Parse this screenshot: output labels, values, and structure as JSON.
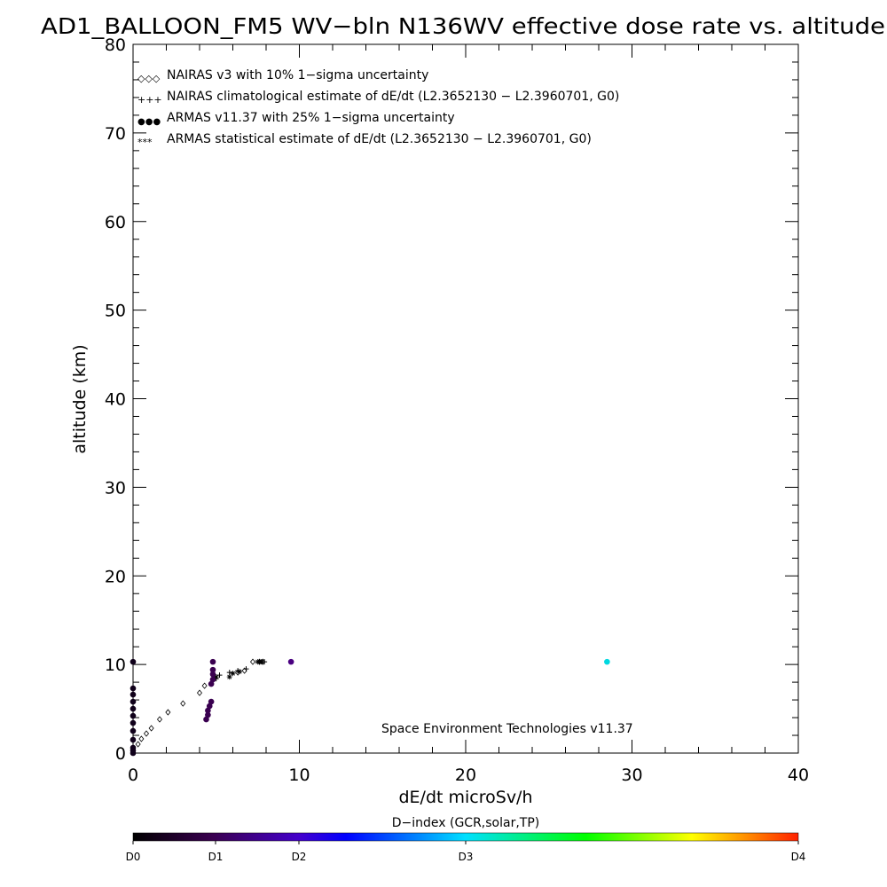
{
  "chart_data": {
    "type": "scatter",
    "title": "AD1_BALLOON_FM5 WV−bln N136WV effective dose rate vs. altitude",
    "xlabel": "dE/dt microSv/h",
    "ylabel": "altitude (km)",
    "xlim": [
      0,
      40
    ],
    "ylim": [
      0,
      80
    ],
    "xticks": [
      "0",
      "10",
      "20",
      "30",
      "40"
    ],
    "yticks": [
      "0",
      "10",
      "20",
      "30",
      "40",
      "50",
      "60",
      "70",
      "80"
    ],
    "grid": false,
    "legend_position": "top-left",
    "legend": [
      {
        "marker": "◇◇◇",
        "label": "NAIRAS v3 with 10% 1−sigma uncertainty"
      },
      {
        "marker": "+++",
        "label": "NAIRAS climatological estimate of dE/dt (L2.3652130 − L2.3960701, G0)"
      },
      {
        "marker": "●●●",
        "label": "ARMAS v11.37 with 25% 1−sigma uncertainty"
      },
      {
        "marker": "***",
        "label": "ARMAS statistical estimate of dE/dt (L2.3652130 − L2.3960701, G0)"
      }
    ],
    "annotation": "Space Environment Technologies v11.37",
    "colorbar": {
      "title": "D−index (GCR,solar,TP)",
      "labels": [
        "D0",
        "D1",
        "D2",
        "D3",
        "D4"
      ]
    },
    "series": [
      {
        "marker": "diamond",
        "points": [
          [
            0.3,
            1.0
          ],
          [
            0.5,
            1.6
          ],
          [
            0.8,
            2.2
          ],
          [
            1.1,
            2.8
          ],
          [
            1.6,
            3.8
          ],
          [
            2.1,
            4.6
          ],
          [
            3.0,
            5.6
          ],
          [
            4.0,
            6.8
          ],
          [
            4.3,
            7.6
          ],
          [
            6.3,
            9.1
          ],
          [
            6.7,
            9.3
          ],
          [
            7.2,
            10.3
          ],
          [
            7.6,
            10.3
          ],
          [
            7.8,
            10.3
          ]
        ]
      },
      {
        "marker": "plus",
        "points": [
          [
            5.0,
            8.4
          ],
          [
            5.2,
            8.8
          ],
          [
            5.8,
            9.1
          ],
          [
            6.3,
            9.3
          ],
          [
            6.8,
            9.5
          ],
          [
            7.6,
            10.3
          ],
          [
            7.8,
            10.3
          ],
          [
            7.9,
            10.3
          ]
        ]
      },
      {
        "marker": "asterisk",
        "points": [
          [
            4.8,
            8.3
          ],
          [
            5.0,
            8.6
          ],
          [
            5.8,
            8.6
          ],
          [
            6.0,
            9.0
          ],
          [
            6.4,
            9.2
          ],
          [
            7.5,
            10.3
          ],
          [
            7.7,
            10.3
          ]
        ]
      },
      {
        "marker": "dot",
        "points": [
          {
            "x": 0.0,
            "y": 0.0,
            "color": "#10001a"
          },
          {
            "x": 0.0,
            "y": 0.3,
            "color": "#10001a"
          },
          {
            "x": 0.0,
            "y": 0.6,
            "color": "#10001a"
          },
          {
            "x": 0.0,
            "y": 1.5,
            "color": "#10001a"
          },
          {
            "x": 0.0,
            "y": 2.5,
            "color": "#10001a"
          },
          {
            "x": 0.0,
            "y": 3.4,
            "color": "#10001a"
          },
          {
            "x": 0.0,
            "y": 4.2,
            "color": "#10001a"
          },
          {
            "x": 0.0,
            "y": 5.0,
            "color": "#10001a"
          },
          {
            "x": 0.0,
            "y": 5.8,
            "color": "#10001a"
          },
          {
            "x": 0.0,
            "y": 6.6,
            "color": "#10001a"
          },
          {
            "x": 0.0,
            "y": 7.3,
            "color": "#10001a"
          },
          {
            "x": 0.0,
            "y": 10.3,
            "color": "#10001a"
          },
          {
            "x": 4.4,
            "y": 3.8,
            "color": "#3a0050"
          },
          {
            "x": 4.5,
            "y": 4.3,
            "color": "#3a0050"
          },
          {
            "x": 4.5,
            "y": 4.8,
            "color": "#3a0050"
          },
          {
            "x": 4.6,
            "y": 5.3,
            "color": "#3a0050"
          },
          {
            "x": 4.7,
            "y": 5.8,
            "color": "#3a0050"
          },
          {
            "x": 4.7,
            "y": 7.8,
            "color": "#3a0050"
          },
          {
            "x": 4.8,
            "y": 8.3,
            "color": "#3a0050"
          },
          {
            "x": 4.8,
            "y": 8.9,
            "color": "#3a0050"
          },
          {
            "x": 4.8,
            "y": 9.4,
            "color": "#3a0050"
          },
          {
            "x": 4.8,
            "y": 10.3,
            "color": "#3a0050"
          },
          {
            "x": 9.5,
            "y": 10.3,
            "color": "#4a0080"
          },
          {
            "x": 28.5,
            "y": 10.3,
            "color": "#00d8e0"
          }
        ]
      }
    ]
  }
}
